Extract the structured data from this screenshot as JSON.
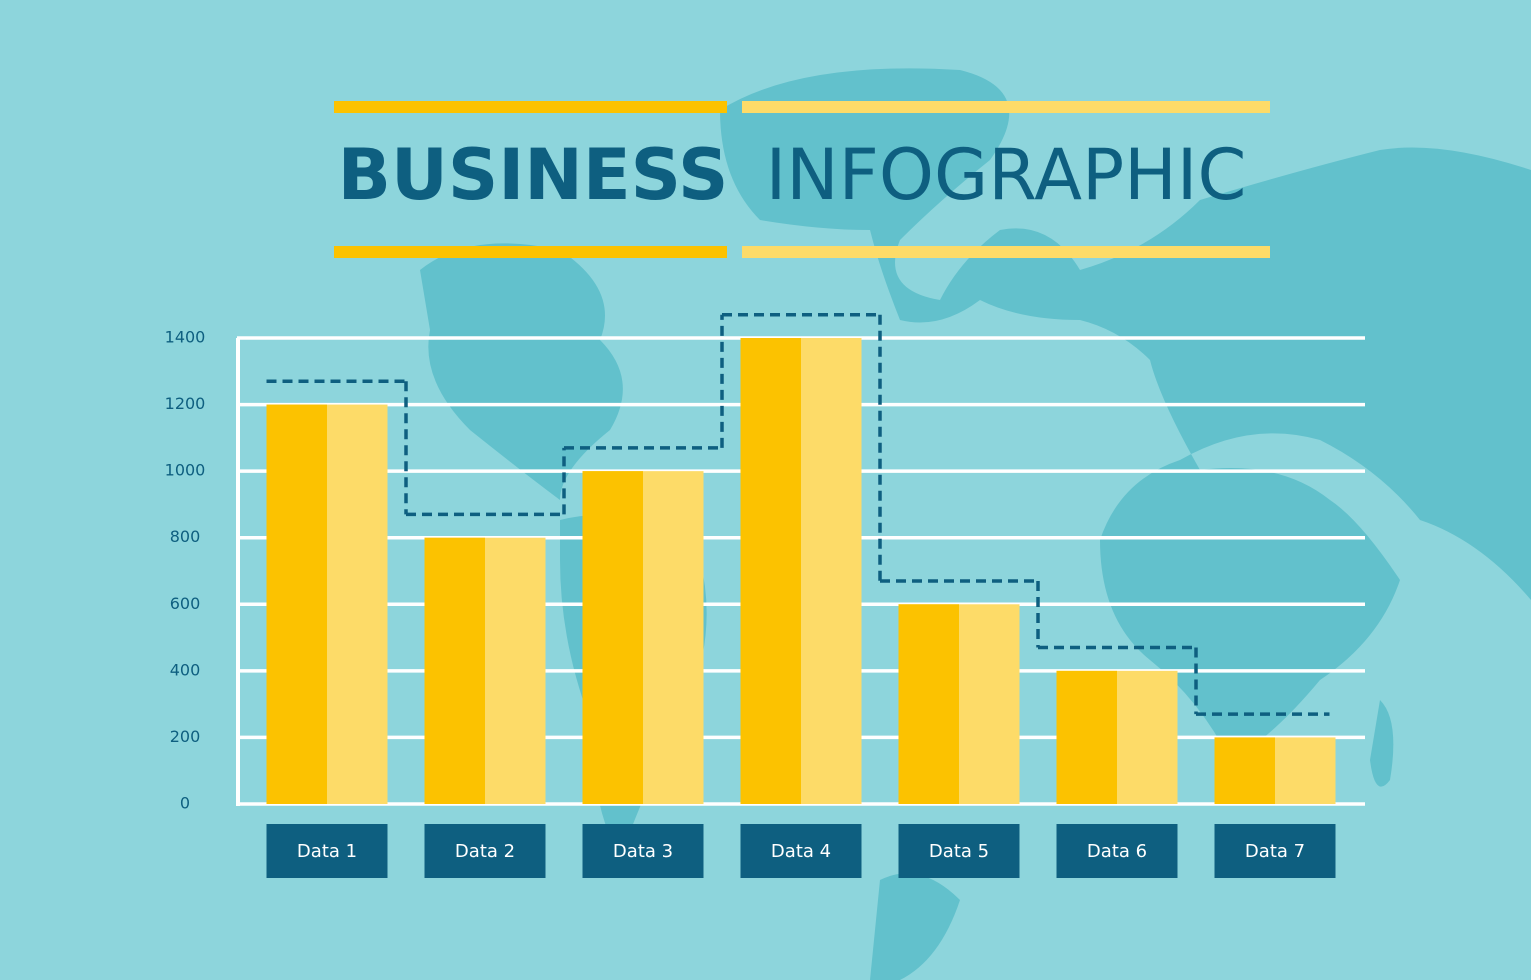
{
  "chart_data": {
    "type": "bar",
    "title_bold": "BUSINESS",
    "title_light": "INFOGRAPHIC",
    "categories": [
      "Data 1",
      "Data 2",
      "Data 3",
      "Data 4",
      "Data 5",
      "Data 6",
      "Data 7"
    ],
    "series": [
      {
        "color": "#fcc200",
        "values": [
          1200,
          800,
          1000,
          1400,
          600,
          400,
          200
        ]
      },
      {
        "color": "#0e5f80",
        "style": "dashed-step",
        "values": [
          1270,
          870,
          1070,
          1470,
          670,
          470,
          270
        ]
      }
    ],
    "ylim": [
      0,
      1400
    ],
    "yticks": [
      0,
      200,
      400,
      600,
      800,
      1000,
      1200,
      1400
    ],
    "grid": true
  }
}
